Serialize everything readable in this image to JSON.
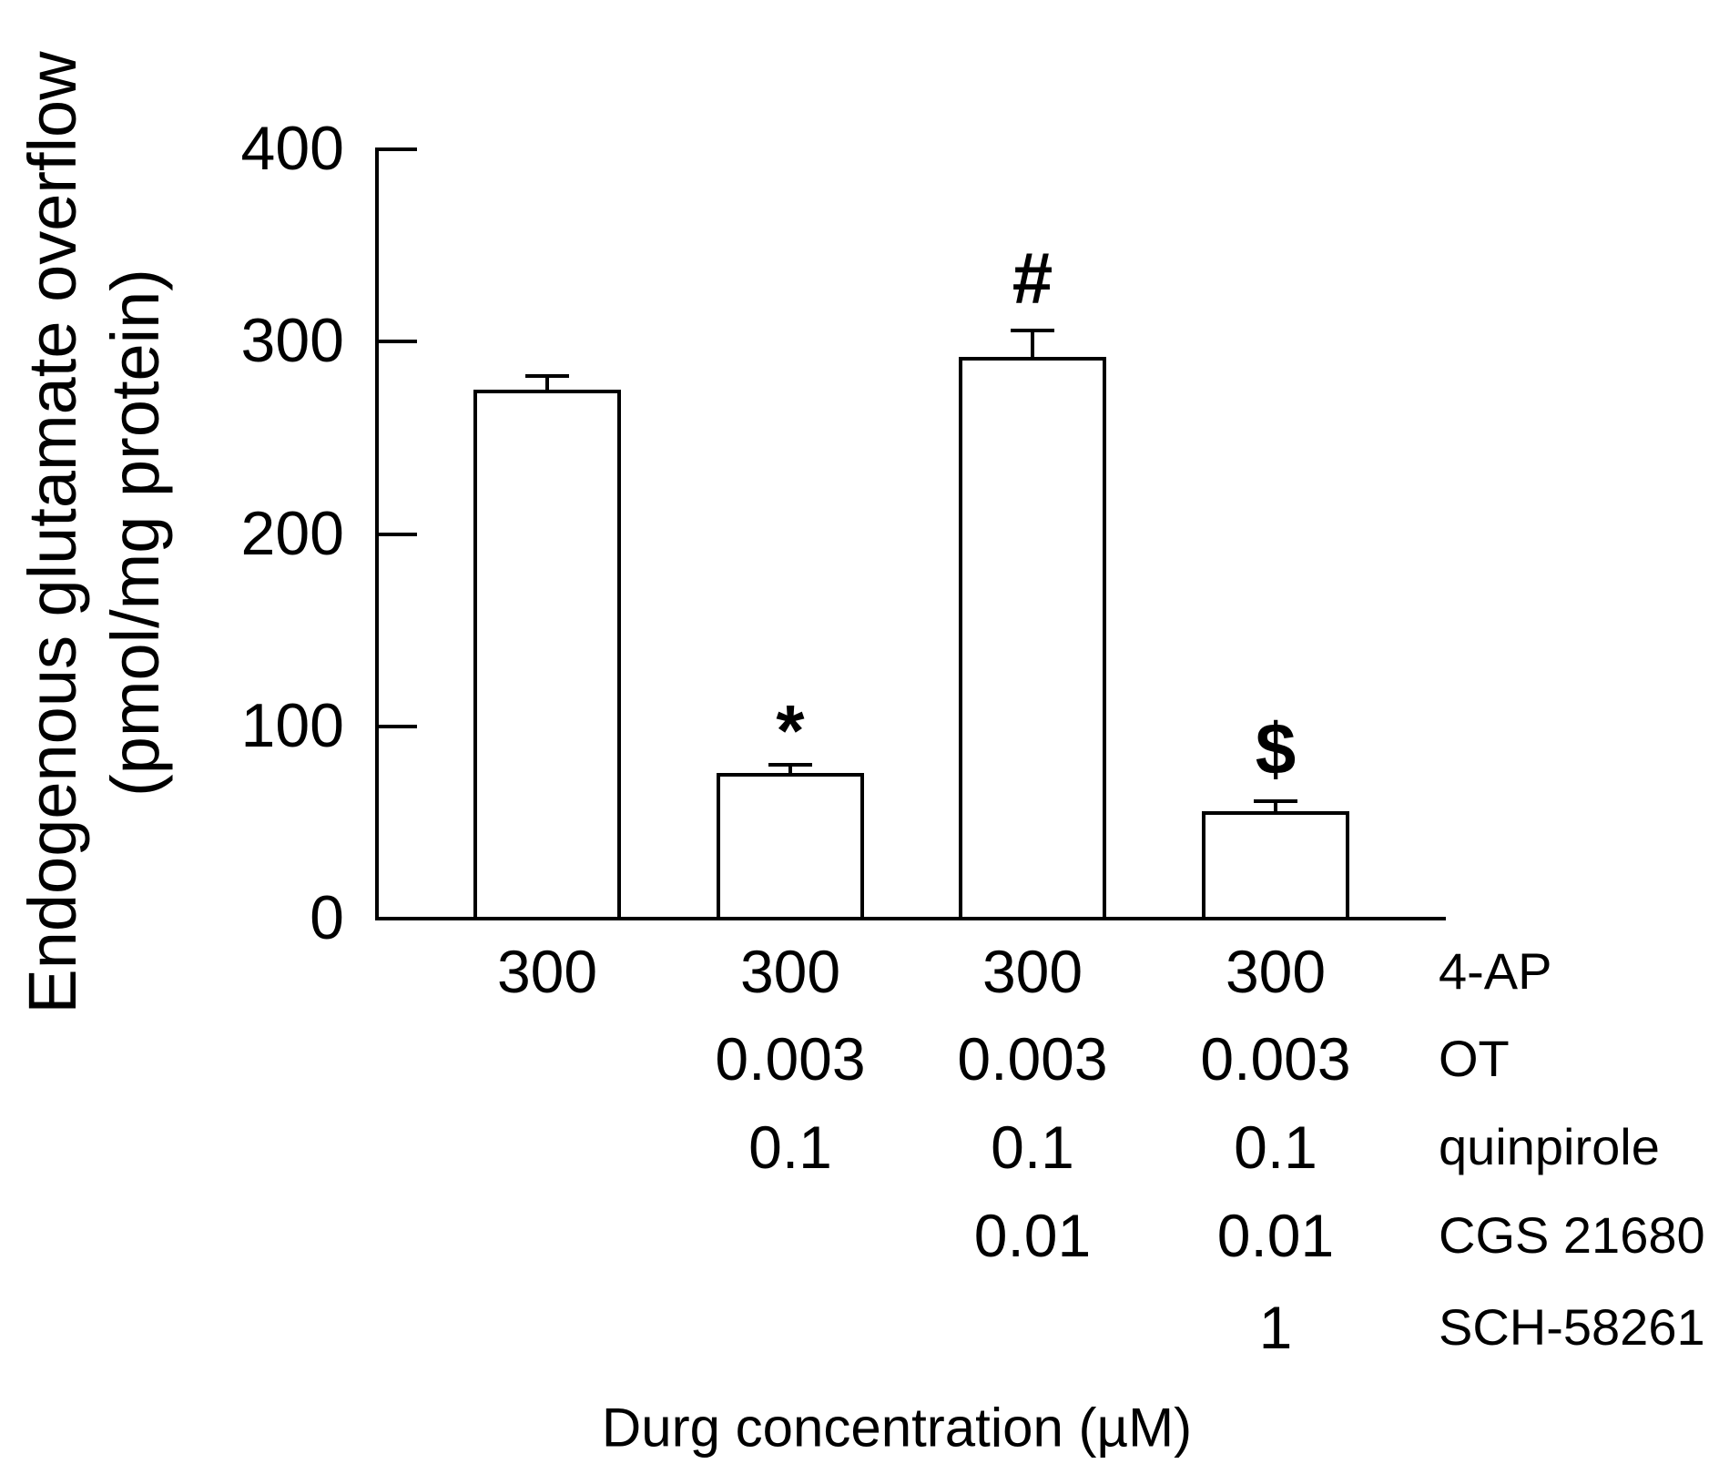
{
  "figure": {
    "background_color": "#ffffff",
    "ink_color": "#000000"
  },
  "y_axis": {
    "label_line1": "Endogenous glutamate overflow",
    "label_line2": "(pmol/mg protein)",
    "tick_labels": [
      "400",
      "300",
      "200",
      "100",
      "0"
    ]
  },
  "x_axis": {
    "title": "Durg concentration (µM)"
  },
  "chart_data": {
    "type": "bar",
    "title": "",
    "ylabel": "Endogenous glutamate overflow (pmol/mg protein)",
    "xlabel": "Durg concentration (µM)",
    "ylim": [
      0,
      400
    ],
    "yticks": [
      0,
      100,
      200,
      300,
      400
    ],
    "grid": false,
    "bar_fill": "#ffffff",
    "bar_edge": "#000000",
    "bars": [
      {
        "value": 274,
        "sem": 8,
        "annotation": ""
      },
      {
        "value": 75,
        "sem": 5,
        "annotation": "*"
      },
      {
        "value": 291,
        "sem": 15,
        "annotation": "#"
      },
      {
        "value": 55,
        "sem": 6,
        "annotation": "$"
      }
    ],
    "condition_rows": [
      {
        "drug": "4-AP",
        "values": [
          "300",
          "300",
          "300",
          "300"
        ]
      },
      {
        "drug": "OT",
        "values": [
          "",
          "0.003",
          "0.003",
          "0.003"
        ]
      },
      {
        "drug": "quinpirole",
        "values": [
          "",
          "0.1",
          "0.1",
          "0.1"
        ]
      },
      {
        "drug": "CGS 21680",
        "values": [
          "",
          "",
          "0.01",
          "0.01"
        ]
      },
      {
        "drug": "SCH-58261",
        "values": [
          "",
          "",
          "",
          "1"
        ]
      }
    ]
  }
}
